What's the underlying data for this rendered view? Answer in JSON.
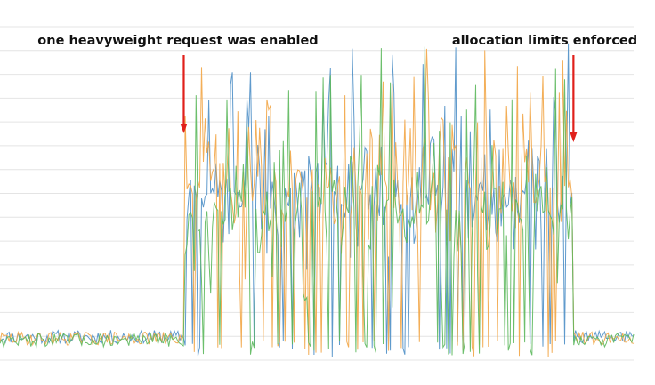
{
  "chart_data": {
    "type": "line",
    "title": "",
    "xlabel": "",
    "ylabel": "",
    "ylim": [
      0,
      1
    ],
    "grid": true,
    "legend": "none",
    "annotations": [
      {
        "text": "one heavyweight request was enabled",
        "x": 0.29,
        "color": "#e0201b"
      },
      {
        "text": "allocation limits enforced",
        "x": 0.905,
        "color": "#e0201b"
      }
    ],
    "series": [
      {
        "color": "#4e8fc7",
        "baseline": 0.07,
        "burst_center": 0.5,
        "burst_spread": 0.28,
        "seed": 11
      },
      {
        "color": "#f2a545",
        "baseline": 0.065,
        "burst_center": 0.52,
        "burst_spread": 0.3,
        "seed": 29
      },
      {
        "color": "#5cb85c",
        "baseline": 0.06,
        "burst_center": 0.45,
        "burst_spread": 0.3,
        "seed": 47
      }
    ],
    "phases": {
      "burst_start": 0.29,
      "burst_end": 0.905
    }
  }
}
